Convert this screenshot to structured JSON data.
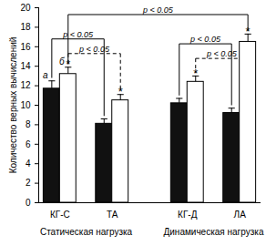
{
  "chart_data": {
    "type": "bar",
    "ylabel": "Количество верных вычислений",
    "categories": [
      "КГ-С",
      "ТА",
      "КГ-Д",
      "ЛА"
    ],
    "series": [
      {
        "color": "#111111",
        "values": [
          11.7,
          8.1,
          10.2,
          9.2
        ],
        "errors": [
          0.8,
          0.5,
          0.5,
          0.5
        ]
      },
      {
        "color": "#ffffff",
        "values": [
          13.2,
          10.5,
          12.4,
          16.5
        ],
        "errors": [
          0.7,
          0.6,
          0.6,
          0.8
        ]
      }
    ],
    "ylim": [
      0,
      20
    ],
    "yticks": [
      0,
      2,
      4,
      6,
      8,
      10,
      12,
      14,
      16,
      18,
      20
    ],
    "groups": [
      {
        "label": "Статическая нагрузка",
        "categories": [
          "КГ-С",
          "ТА"
        ]
      },
      {
        "label": "Динамическая нагрузка",
        "categories": [
          "КГ-Д",
          "ЛА"
        ]
      }
    ],
    "annotations": [
      {
        "category": "КГ-С",
        "series": 0,
        "text": "а"
      },
      {
        "category": "КГ-С",
        "series": 1,
        "text": "б"
      },
      {
        "category": "КГ-С",
        "series": 1,
        "text": "*"
      },
      {
        "category": "ТА",
        "series": 1,
        "text": "*"
      },
      {
        "category": "КГ-Д",
        "series": 1,
        "text": "*"
      },
      {
        "category": "ЛА",
        "series": 1,
        "text": "*"
      }
    ],
    "comparisons": [
      {
        "from": [
          "КГ-С",
          0
        ],
        "to": [
          "ТА",
          0
        ],
        "y": 16.8,
        "label": "p < 0.05",
        "line_style": "solid"
      },
      {
        "from": [
          "КГ-С",
          1
        ],
        "to": [
          "ТА",
          1
        ],
        "y": 15.3,
        "label": "p < 0.05",
        "line_style": "dashed"
      },
      {
        "from": [
          "КГ-С",
          1
        ],
        "to": [
          "ЛА",
          1
        ],
        "y": 19.3,
        "label": "p < 0.05",
        "line_style": "solid"
      },
      {
        "from": [
          "КГ-Д",
          0
        ],
        "to": [
          "ЛА",
          0
        ],
        "y": 16.3,
        "label": "p < 0.05",
        "line_style": "solid"
      },
      {
        "from": [
          "КГ-Д",
          1
        ],
        "to": [
          "ЛА",
          1
        ],
        "y": 14.8,
        "label": "p < 0.05",
        "line_style": "dashed"
      }
    ]
  }
}
